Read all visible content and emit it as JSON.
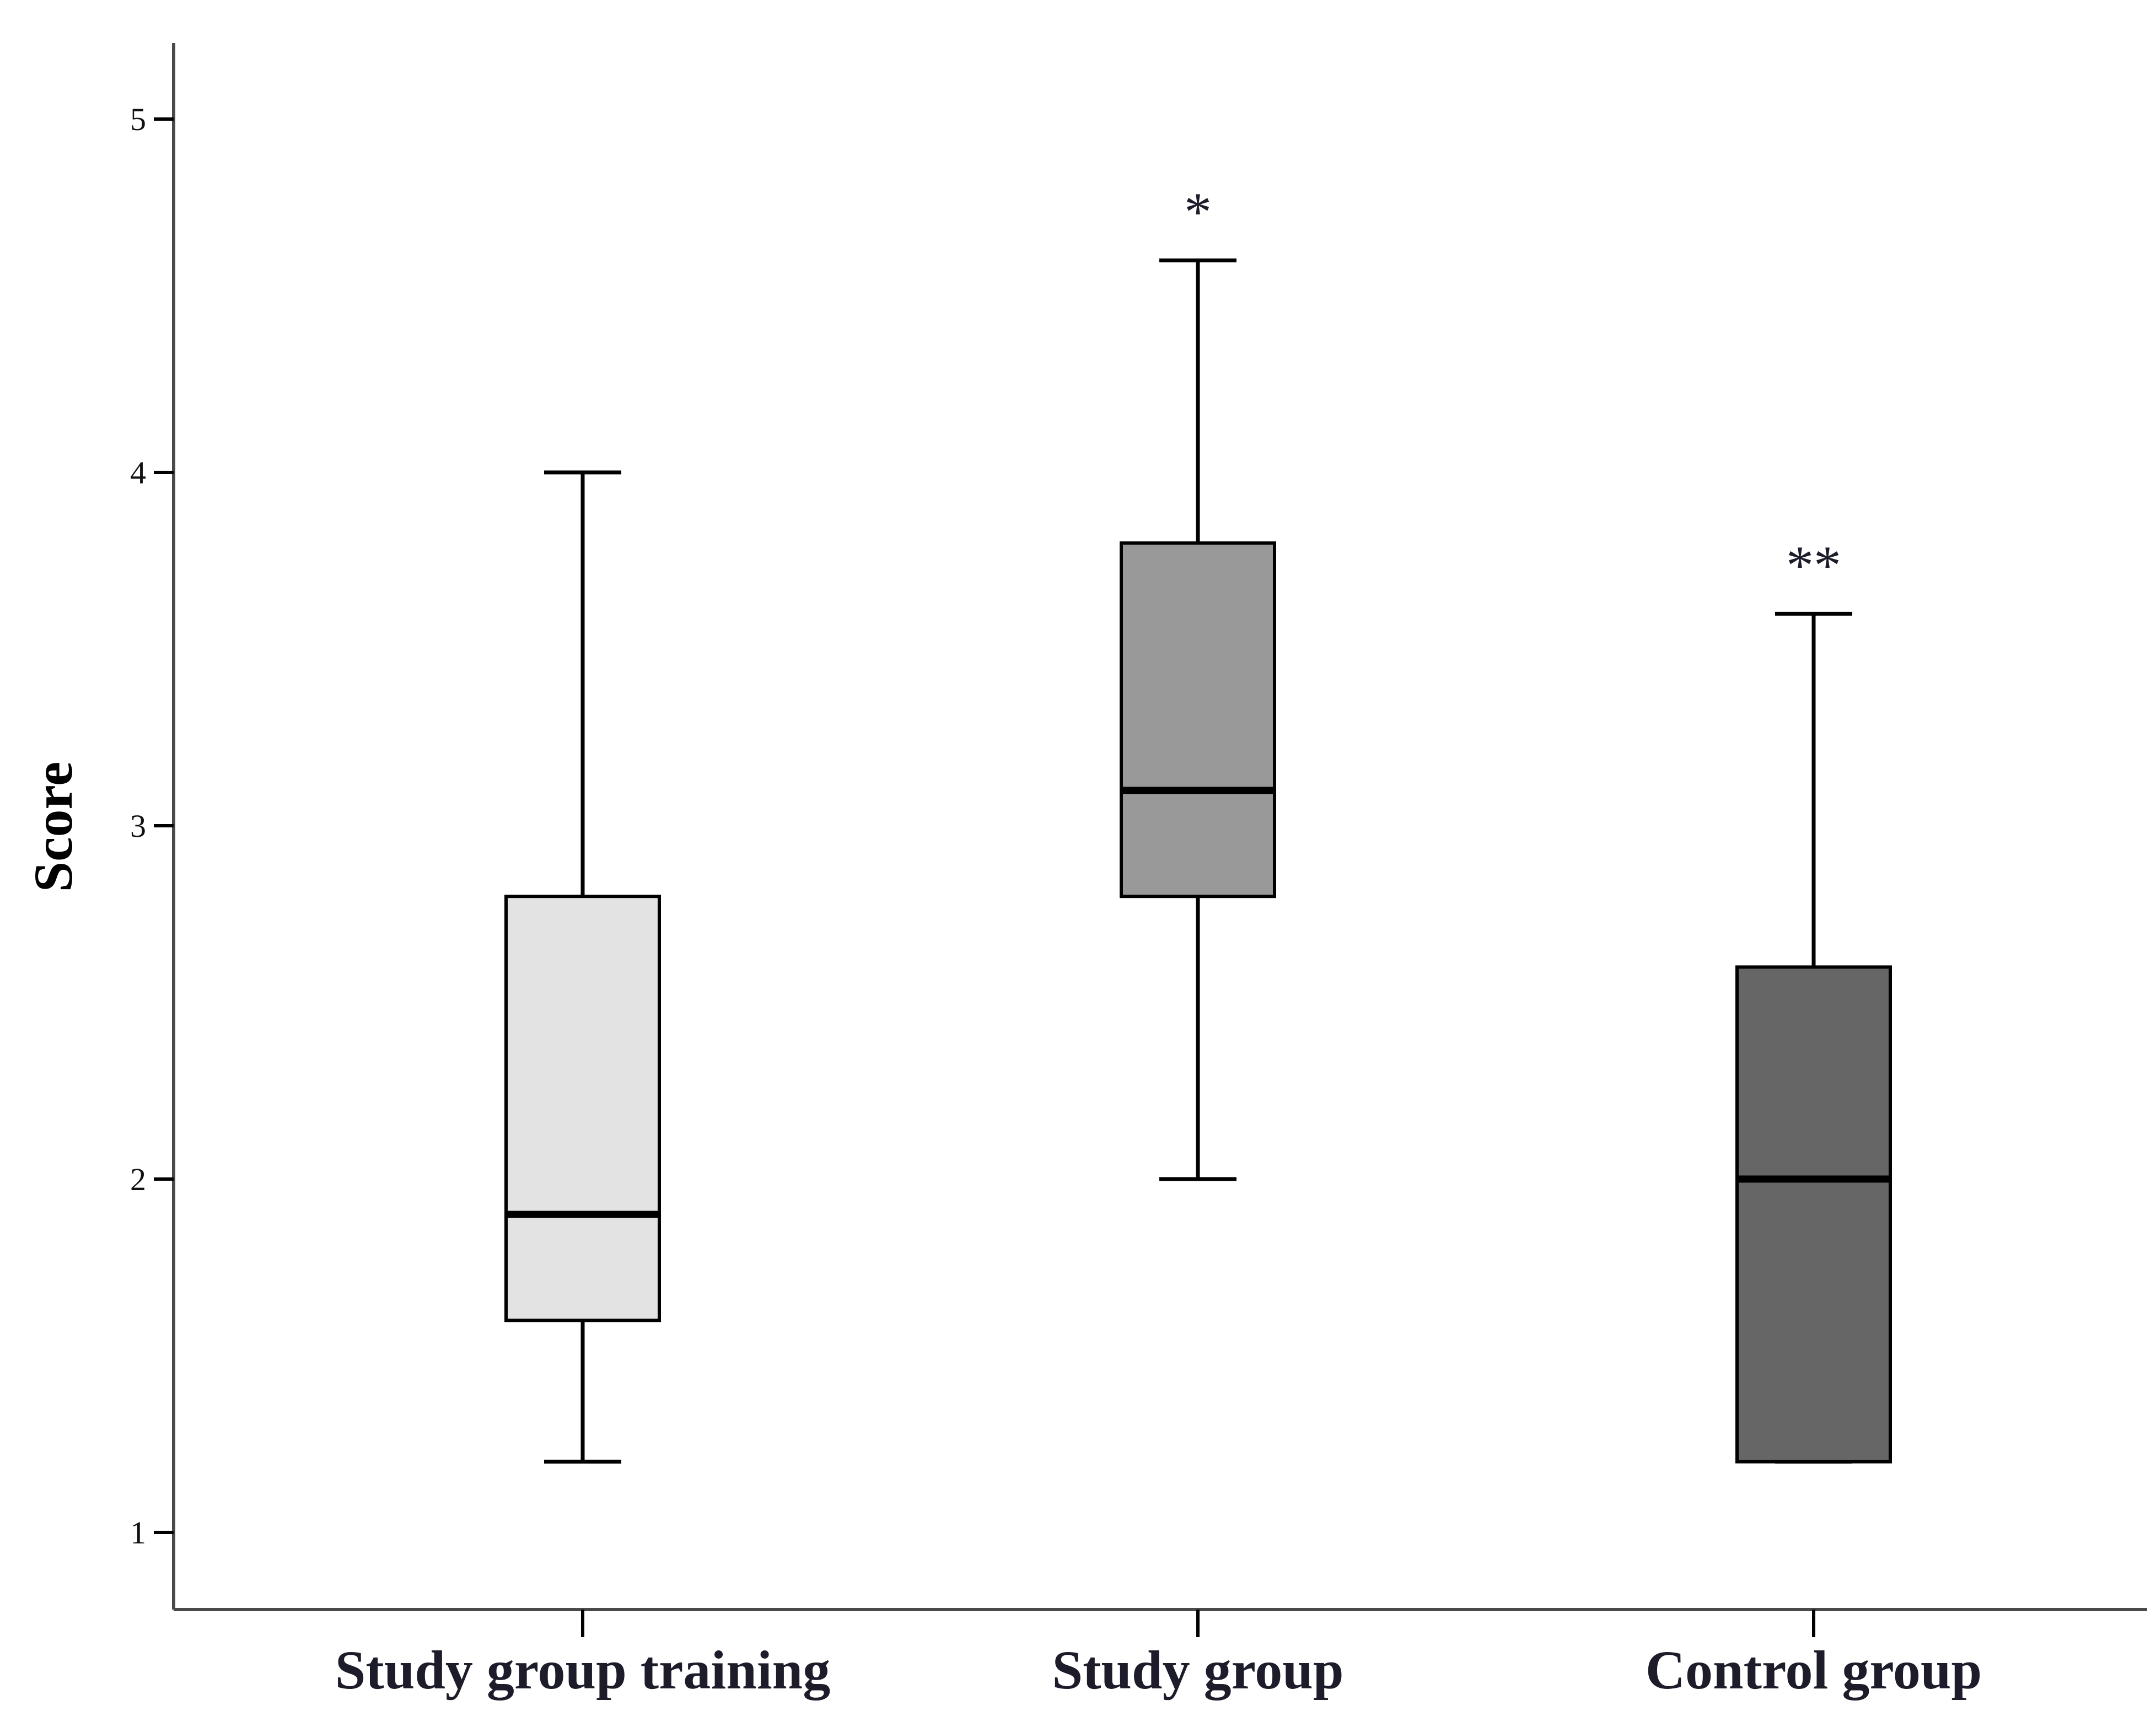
{
  "chart_data": {
    "type": "box",
    "title": "",
    "xlabel": "",
    "ylabel": "Score",
    "ylim": [
      0.75,
      5.2
    ],
    "yticks": [
      1,
      2,
      3,
      4,
      5
    ],
    "ytick_labels": [
      "1",
      "2",
      "3",
      "4",
      "5"
    ],
    "categories": [
      "Study group training",
      "Study group",
      "Control group"
    ],
    "series": [
      {
        "name": "Study group training",
        "min": 1.2,
        "q1": 1.6,
        "median": 1.9,
        "q3": 2.8,
        "max": 4.0,
        "color": "#e3e3e3",
        "annotation": ""
      },
      {
        "name": "Study group",
        "min": 2.0,
        "q1": 2.8,
        "median": 3.1,
        "q3": 3.8,
        "max": 4.6,
        "color": "#999999",
        "annotation": "*"
      },
      {
        "name": "Control group",
        "min": 1.2,
        "q1": 1.2,
        "median": 2.0,
        "q3": 2.6,
        "max": 3.6,
        "color": "#666666",
        "annotation": "**"
      }
    ],
    "grid": false,
    "legend": "none"
  }
}
